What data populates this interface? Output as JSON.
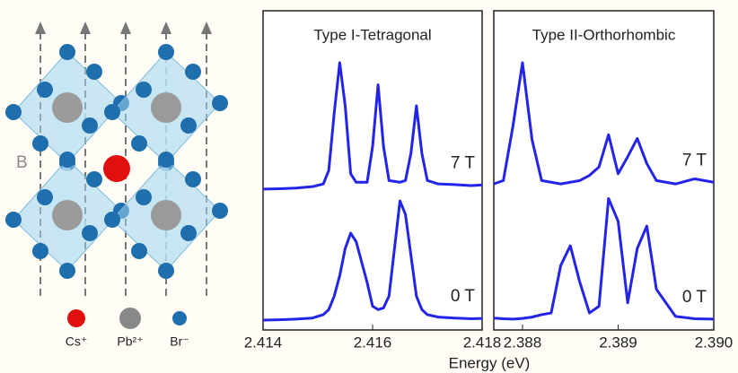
{
  "structure": {
    "label": "B",
    "legend": [
      "Cs⁺",
      "Pb²⁺",
      "Br⁻"
    ]
  },
  "x_label": "Energy (eV)",
  "chart_data": [
    {
      "type": "line",
      "title": "Type I-Tetragonal",
      "x": [
        2.414,
        2.4143,
        2.4146,
        2.4149,
        2.4151,
        2.4152,
        2.4153,
        2.4154,
        2.4155,
        2.4156,
        2.4157,
        2.4159,
        2.416,
        2.4161,
        2.4162,
        2.4163,
        2.4165,
        2.4166,
        2.4167,
        2.4168,
        2.4169,
        2.417,
        2.4172,
        2.4175,
        2.4178,
        2.418
      ],
      "series": [
        {
          "name": "7 T",
          "color": "#2424e8",
          "values": [
            47.5,
            47.6,
            47.8,
            48.2,
            49,
            53,
            70,
            84.7,
            72,
            52,
            49.5,
            49.5,
            60,
            78.2,
            60,
            50,
            49.5,
            50,
            58,
            72,
            58,
            50,
            49,
            48.8,
            48.5,
            48.7
          ]
        },
        {
          "name": "0 T",
          "color": "#2424e8",
          "values": [
            8.9,
            9,
            9.2,
            9.5,
            10.5,
            12,
            16,
            22,
            30,
            34.5,
            32,
            20,
            13,
            12,
            12.5,
            16,
            44,
            40,
            28,
            16,
            12,
            10.5,
            9.8,
            9.5,
            9.3,
            9.4
          ]
        }
      ],
      "xlim": [
        2.414,
        2.418
      ],
      "xticks": [
        2.414,
        2.416,
        2.418
      ],
      "ylim": [
        6,
        100
      ]
    },
    {
      "type": "line",
      "title": "Type II-Orthorhombic",
      "x": [
        2.3877,
        2.3878,
        2.3879,
        2.388,
        2.3881,
        2.3882,
        2.3883,
        2.3884,
        2.3885,
        2.3886,
        2.3887,
        2.3888,
        2.3889,
        2.389,
        2.3891,
        2.3892,
        2.3893,
        2.3894,
        2.3896,
        2.3898,
        2.39
      ],
      "series": [
        {
          "name": "7 T",
          "color": "#2424e8",
          "values": [
            49,
            50,
            66,
            84.7,
            62,
            50,
            49.5,
            49,
            49.5,
            50,
            51.5,
            54,
            63.5,
            52,
            57,
            62.4,
            55,
            50,
            49,
            50.5,
            49.5
          ]
        },
        {
          "name": "0 T",
          "color": "#2424e8",
          "values": [
            9.5,
            9.3,
            9.2,
            9.4,
            9.8,
            10.5,
            11,
            25,
            30.8,
            20,
            11,
            13,
            44.7,
            38,
            14,
            30,
            36.6,
            18,
            10,
            9.3,
            9.2
          ]
        }
      ],
      "xlim": [
        2.3877,
        2.39
      ],
      "xticks": [
        2.388,
        2.389,
        {
          "value": 2.39,
          "label": "2.390"
        }
      ],
      "ylim": [
        6,
        100
      ]
    }
  ]
}
